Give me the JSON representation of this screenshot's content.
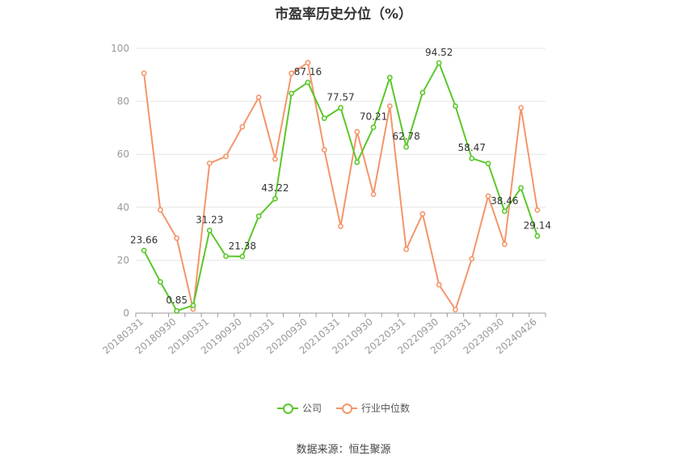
{
  "chart_data": {
    "type": "line",
    "title": "市盈率历史分位（%）",
    "xlabel": "",
    "ylabel": "",
    "ylim": [
      0,
      100
    ],
    "yticks": [
      0,
      20,
      40,
      60,
      80,
      100
    ],
    "grid": true,
    "legend_position": "bottom",
    "x": [
      "20180331",
      "20180630",
      "20180930",
      "20181231",
      "20190331",
      "20190630",
      "20190930",
      "20191231",
      "20200331",
      "20200630",
      "20200930",
      "20201231",
      "20210331",
      "20210630",
      "20210930",
      "20211231",
      "20220331",
      "20220630",
      "20220930",
      "20221231",
      "20230331",
      "20230630",
      "20230930",
      "20231231",
      "20240426"
    ],
    "xtick_labels": [
      "20180331",
      "20180930",
      "20190331",
      "20190930",
      "20200331",
      "20200930",
      "20210331",
      "20210930",
      "20220331",
      "20220930",
      "20230331",
      "20230930",
      "20240426"
    ],
    "series": [
      {
        "name": "公司",
        "color": "#5ac729",
        "values": [
          23.66,
          11.8,
          0.85,
          2.9,
          31.23,
          21.5,
          21.38,
          36.6,
          43.22,
          83.0,
          87.16,
          73.6,
          77.57,
          57.0,
          70.21,
          89.0,
          62.78,
          83.3,
          94.52,
          78.2,
          58.47,
          56.5,
          38.46,
          47.3,
          29.14
        ],
        "data_labels": [
          "23.66",
          "",
          "0.85",
          "",
          "31.23",
          "",
          "21.38",
          "",
          "43.22",
          "",
          "87.16",
          "",
          "77.57",
          "",
          "70.21",
          "",
          "62.78",
          "",
          "94.52",
          "",
          "58.47",
          "",
          "38.46",
          "",
          "29.14"
        ]
      },
      {
        "name": "行业中位数",
        "color": "#f4956a",
        "values": [
          90.6,
          39.0,
          28.3,
          1.5,
          56.6,
          59.2,
          70.4,
          81.5,
          58.2,
          90.6,
          94.6,
          61.7,
          32.8,
          68.5,
          44.9,
          78.2,
          24.1,
          37.5,
          10.7,
          1.3,
          20.5,
          44.2,
          26.0,
          77.6,
          38.9
        ]
      }
    ]
  },
  "source_text": "数据来源：恒生聚源"
}
